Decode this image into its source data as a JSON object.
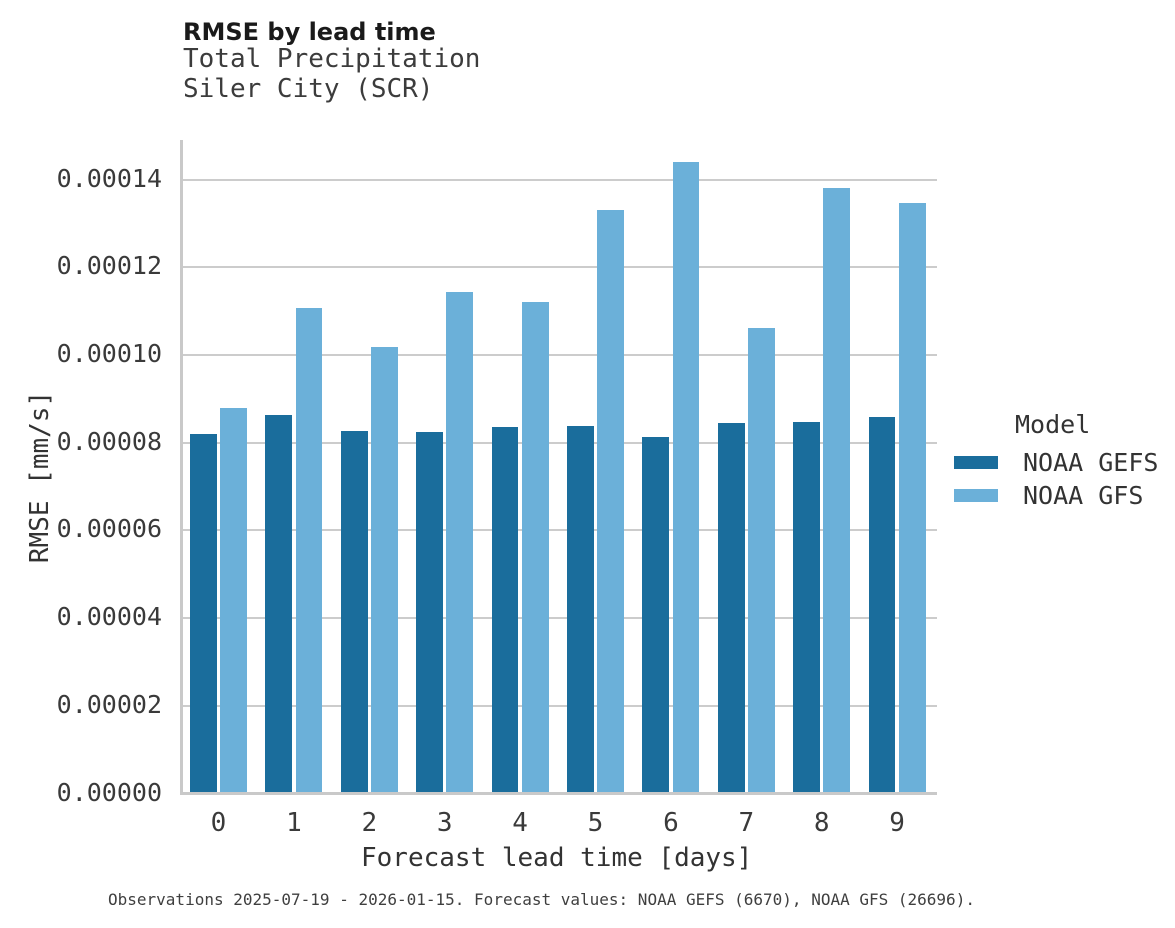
{
  "header": {
    "title": "RMSE by lead time",
    "subtitle_variable": "Total Precipitation",
    "subtitle_location": "Siler City (SCR)"
  },
  "axes": {
    "x_label": "Forecast lead time [days]",
    "y_label": "RMSE [mm/s]",
    "y_tick_labels": [
      "0.00000",
      "0.00002",
      "0.00004",
      "0.00006",
      "0.00008",
      "0.00010",
      "0.00012",
      "0.00014"
    ],
    "x_tick_labels": [
      "0",
      "1",
      "2",
      "3",
      "4",
      "5",
      "6",
      "7",
      "8",
      "9"
    ]
  },
  "legend": {
    "title": "Model",
    "entries": [
      {
        "label": "NOAA GEFS",
        "color": "#1a6d9c"
      },
      {
        "label": "NOAA GFS",
        "color": "#6bb0d9"
      }
    ]
  },
  "caption": "Observations 2025-07-19 - 2026-01-15. Forecast values: NOAA GEFS (6670), NOAA GFS (26696).",
  "colors": {
    "gefs_bar": "#1a6d9c",
    "gfs_bar": "#6bb0d9",
    "gridline": "#cccccc",
    "axis_spine": "#c9c9c9",
    "background": "#ffffff"
  },
  "chart_data": {
    "type": "bar",
    "title": "RMSE by lead time",
    "subtitle": [
      "Total Precipitation",
      "Siler City (SCR)"
    ],
    "categories": [
      0,
      1,
      2,
      3,
      4,
      5,
      6,
      7,
      8,
      9
    ],
    "series": [
      {
        "name": "NOAA GEFS",
        "color": "#1a6d9c",
        "values": [
          8.17e-05,
          8.59e-05,
          8.24e-05,
          8.2e-05,
          8.33e-05,
          8.34e-05,
          8.1e-05,
          8.42e-05,
          8.43e-05,
          8.56e-05
        ]
      },
      {
        "name": "NOAA GFS",
        "color": "#6bb0d9",
        "values": [
          8.75e-05,
          0.0001104,
          0.0001015,
          0.000114,
          0.0001118,
          0.0001327,
          0.0001437,
          0.0001057,
          0.0001378,
          0.0001343
        ]
      }
    ],
    "xlabel": "Forecast lead time [days]",
    "ylabel": "RMSE [mm/s]",
    "ylim": [
      0,
      0.000149
    ],
    "y_ticks": [
      0,
      2e-05,
      4e-05,
      6e-05,
      8e-05,
      0.0001,
      0.00012,
      0.00014
    ],
    "grid": true,
    "grouped": true,
    "legend_title": "Model",
    "legend_position": "right",
    "caption": "Observations 2025-07-19 - 2026-01-15. Forecast values: NOAA GEFS (6670), NOAA GFS (26696)."
  }
}
